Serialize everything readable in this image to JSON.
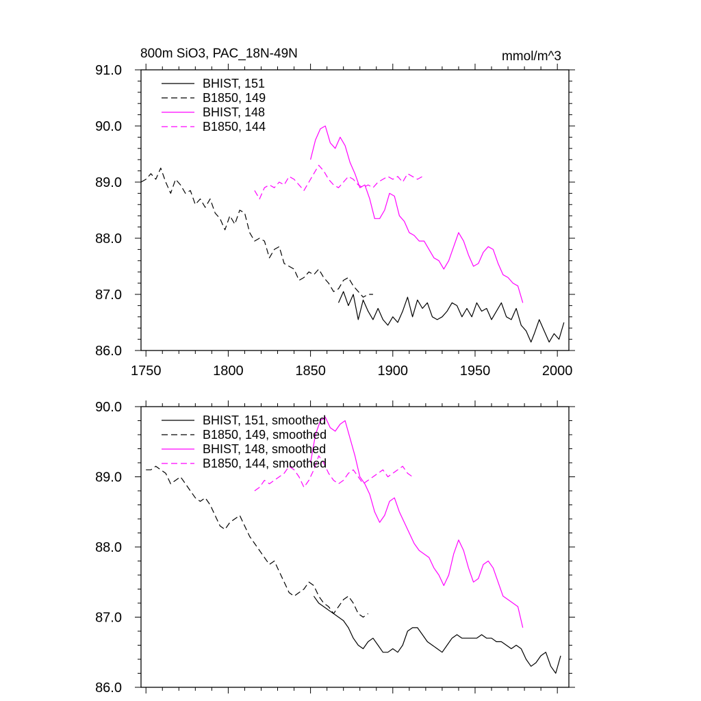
{
  "chart_data": [
    {
      "type": "line",
      "title": "800m SiO3, PAC_18N-49N",
      "units": "mmol/m^3",
      "xlim": [
        1747,
        2007
      ],
      "ylim": [
        86.0,
        91.0
      ],
      "xticks": [
        1750,
        1800,
        1850,
        1900,
        1950,
        2000
      ],
      "xtick_labels": [
        "1750",
        "1800",
        "1850",
        "1900",
        "1950",
        "2000"
      ],
      "yticks": [
        86.0,
        87.0,
        88.0,
        89.0,
        90.0,
        91.0
      ],
      "ytick_labels": [
        "86.0",
        "87.0",
        "88.0",
        "89.0",
        "90.0",
        "91.0"
      ],
      "legend_position": "top-left",
      "series": [
        {
          "name": "BHIST, 151",
          "color": "#000000",
          "dash": "solid",
          "x": [
            1867,
            1870,
            1873,
            1876,
            1879,
            1882,
            1885,
            1888,
            1891,
            1894,
            1897,
            1900,
            1903,
            1906,
            1909,
            1912,
            1915,
            1918,
            1921,
            1924,
            1927,
            1930,
            1933,
            1936,
            1939,
            1942,
            1945,
            1948,
            1951,
            1954,
            1957,
            1960,
            1963,
            1966,
            1969,
            1972,
            1975,
            1978,
            1981,
            1984,
            1986,
            1989,
            1992,
            1995,
            1998,
            2001,
            2004
          ],
          "y": [
            86.85,
            87.05,
            86.8,
            87.0,
            86.55,
            86.9,
            86.7,
            86.55,
            86.75,
            86.55,
            86.45,
            86.6,
            86.5,
            86.7,
            86.95,
            86.6,
            86.9,
            86.75,
            86.85,
            86.6,
            86.55,
            86.6,
            86.7,
            86.85,
            86.8,
            86.6,
            86.75,
            86.6,
            86.85,
            86.7,
            86.75,
            86.55,
            86.7,
            86.85,
            86.6,
            86.55,
            86.75,
            86.45,
            86.35,
            86.15,
            86.3,
            86.55,
            86.35,
            86.15,
            86.3,
            86.2,
            86.5
          ]
        },
        {
          "name": "B1850, 149",
          "color": "#000000",
          "dash": "dashed",
          "x": [
            1747,
            1750,
            1753,
            1756,
            1759,
            1762,
            1765,
            1768,
            1771,
            1774,
            1777,
            1780,
            1783,
            1786,
            1789,
            1792,
            1795,
            1798,
            1801,
            1804,
            1807,
            1810,
            1813,
            1816,
            1819,
            1822,
            1825,
            1828,
            1831,
            1834,
            1837,
            1840,
            1843,
            1846,
            1849,
            1852,
            1855,
            1858,
            1861,
            1864,
            1867,
            1870,
            1873,
            1876,
            1879,
            1882,
            1885,
            1888
          ],
          "y": [
            89.0,
            89.05,
            89.15,
            89.05,
            89.25,
            89.0,
            88.8,
            89.05,
            88.95,
            88.8,
            88.85,
            88.6,
            88.7,
            88.55,
            88.7,
            88.45,
            88.35,
            88.15,
            88.4,
            88.25,
            88.5,
            88.45,
            88.1,
            87.95,
            88.0,
            87.95,
            87.65,
            87.8,
            87.85,
            87.55,
            87.5,
            87.45,
            87.25,
            87.3,
            87.4,
            87.35,
            87.45,
            87.3,
            87.2,
            87.05,
            87.1,
            87.25,
            87.3,
            87.15,
            87.05,
            86.95,
            87.0,
            87.0
          ]
        },
        {
          "name": "BHIST, 148",
          "color": "#ff00ff",
          "dash": "solid",
          "x": [
            1850,
            1853,
            1856,
            1859,
            1862,
            1865,
            1868,
            1871,
            1874,
            1877,
            1880,
            1883,
            1886,
            1889,
            1892,
            1895,
            1898,
            1901,
            1904,
            1907,
            1910,
            1913,
            1916,
            1919,
            1922,
            1925,
            1928,
            1931,
            1934,
            1937,
            1940,
            1943,
            1946,
            1949,
            1952,
            1955,
            1958,
            1961,
            1964,
            1967,
            1970,
            1973,
            1976,
            1979
          ],
          "y": [
            89.4,
            89.75,
            89.95,
            90.0,
            89.7,
            89.6,
            89.8,
            89.65,
            89.35,
            89.15,
            88.9,
            88.95,
            88.7,
            88.35,
            88.35,
            88.5,
            88.8,
            88.75,
            88.4,
            88.3,
            88.1,
            88.05,
            87.95,
            87.95,
            87.8,
            87.65,
            87.6,
            87.45,
            87.6,
            87.85,
            88.1,
            87.95,
            87.7,
            87.5,
            87.55,
            87.75,
            87.85,
            87.8,
            87.55,
            87.35,
            87.3,
            87.2,
            87.15,
            86.85
          ]
        },
        {
          "name": "B1850, 144",
          "color": "#ff00ff",
          "dash": "dashed",
          "x": [
            1816,
            1819,
            1822,
            1825,
            1828,
            1831,
            1834,
            1837,
            1840,
            1843,
            1846,
            1849,
            1852,
            1855,
            1858,
            1861,
            1864,
            1867,
            1870,
            1873,
            1876,
            1879,
            1882,
            1885,
            1888,
            1891,
            1894,
            1897,
            1900,
            1903,
            1906,
            1909,
            1912,
            1915,
            1918
          ],
          "y": [
            88.85,
            88.7,
            88.9,
            88.95,
            88.9,
            89.0,
            88.95,
            89.1,
            89.05,
            88.95,
            88.85,
            89.0,
            89.15,
            89.3,
            89.2,
            89.05,
            88.95,
            88.9,
            89.0,
            89.1,
            89.05,
            88.95,
            88.9,
            88.95,
            88.9,
            89.0,
            89.05,
            89.1,
            89.05,
            89.1,
            89.0,
            89.15,
            89.1,
            89.05,
            89.1
          ]
        }
      ]
    },
    {
      "type": "line",
      "xlim": [
        1747,
        2007
      ],
      "ylim": [
        86.0,
        90.0
      ],
      "yticks": [
        86.0,
        87.0,
        88.0,
        89.0,
        90.0
      ],
      "ytick_labels": [
        "86.0",
        "87.0",
        "88.0",
        "89.0",
        "90.0"
      ],
      "xticks": [
        1750,
        1800,
        1850,
        1900,
        1950,
        2000
      ],
      "legend_position": "top-left",
      "series": [
        {
          "name": "BHIST, 151, smoothed",
          "color": "#000000",
          "dash": "solid",
          "x": [
            1852,
            1855,
            1858,
            1861,
            1864,
            1867,
            1870,
            1873,
            1876,
            1879,
            1882,
            1885,
            1888,
            1891,
            1894,
            1897,
            1900,
            1903,
            1906,
            1909,
            1912,
            1915,
            1918,
            1921,
            1924,
            1927,
            1930,
            1933,
            1936,
            1939,
            1942,
            1945,
            1948,
            1951,
            1954,
            1957,
            1960,
            1963,
            1966,
            1969,
            1972,
            1975,
            1978,
            1981,
            1984,
            1987,
            1990,
            1993,
            1996,
            1999,
            2002
          ],
          "y": [
            87.3,
            87.2,
            87.15,
            87.1,
            87.05,
            87.0,
            86.95,
            86.85,
            86.7,
            86.6,
            86.55,
            86.65,
            86.7,
            86.6,
            86.5,
            86.5,
            86.55,
            86.5,
            86.6,
            86.8,
            86.85,
            86.85,
            86.75,
            86.65,
            86.6,
            86.55,
            86.5,
            86.6,
            86.7,
            86.75,
            86.7,
            86.7,
            86.7,
            86.7,
            86.75,
            86.7,
            86.7,
            86.65,
            86.65,
            86.6,
            86.55,
            86.6,
            86.55,
            86.4,
            86.3,
            86.35,
            86.45,
            86.5,
            86.3,
            86.2,
            86.45
          ]
        },
        {
          "name": "B1850, 149, smoothed",
          "color": "#000000",
          "dash": "dashed",
          "x": [
            1750,
            1753,
            1756,
            1759,
            1762,
            1765,
            1768,
            1771,
            1774,
            1777,
            1780,
            1783,
            1786,
            1789,
            1792,
            1795,
            1798,
            1801,
            1804,
            1807,
            1810,
            1813,
            1816,
            1819,
            1822,
            1825,
            1828,
            1831,
            1834,
            1837,
            1840,
            1843,
            1846,
            1849,
            1852,
            1855,
            1858,
            1861,
            1864,
            1867,
            1870,
            1873,
            1876,
            1879,
            1882,
            1885
          ],
          "y": [
            89.1,
            89.1,
            89.15,
            89.1,
            89.05,
            88.9,
            88.95,
            89.0,
            88.9,
            88.8,
            88.7,
            88.65,
            88.7,
            88.6,
            88.45,
            88.3,
            88.25,
            88.35,
            88.4,
            88.45,
            88.3,
            88.15,
            88.05,
            87.95,
            87.85,
            87.75,
            87.8,
            87.65,
            87.5,
            87.35,
            87.3,
            87.35,
            87.4,
            87.5,
            87.45,
            87.3,
            87.2,
            87.15,
            87.05,
            87.15,
            87.25,
            87.3,
            87.2,
            87.05,
            87.0,
            87.05
          ]
        },
        {
          "name": "BHIST, 148, smoothed",
          "color": "#ff00ff",
          "dash": "solid",
          "x": [
            1850,
            1853,
            1856,
            1859,
            1862,
            1865,
            1868,
            1871,
            1874,
            1877,
            1880,
            1883,
            1886,
            1889,
            1892,
            1895,
            1898,
            1901,
            1904,
            1907,
            1910,
            1913,
            1916,
            1919,
            1922,
            1925,
            1928,
            1931,
            1934,
            1937,
            1940,
            1943,
            1946,
            1949,
            1952,
            1955,
            1958,
            1961,
            1964,
            1967,
            1970,
            1973,
            1976,
            1979
          ],
          "y": [
            89.2,
            89.6,
            89.8,
            89.85,
            89.7,
            89.65,
            89.75,
            89.8,
            89.55,
            89.3,
            89.0,
            88.9,
            88.75,
            88.5,
            88.35,
            88.45,
            88.65,
            88.7,
            88.5,
            88.35,
            88.2,
            88.05,
            87.95,
            87.9,
            87.85,
            87.7,
            87.6,
            87.45,
            87.6,
            87.9,
            88.1,
            87.95,
            87.7,
            87.5,
            87.55,
            87.75,
            87.8,
            87.7,
            87.5,
            87.3,
            87.25,
            87.2,
            87.15,
            86.85
          ]
        },
        {
          "name": "B1850, 144, smoothed",
          "color": "#ff00ff",
          "dash": "dashed",
          "x": [
            1816,
            1819,
            1822,
            1825,
            1828,
            1831,
            1834,
            1837,
            1840,
            1843,
            1846,
            1849,
            1852,
            1855,
            1858,
            1861,
            1864,
            1867,
            1870,
            1873,
            1876,
            1879,
            1882,
            1885,
            1888,
            1891,
            1894,
            1897,
            1900,
            1903,
            1906,
            1909,
            1912
          ],
          "y": [
            88.8,
            88.85,
            88.95,
            88.9,
            88.95,
            89.0,
            89.05,
            89.15,
            89.1,
            89.0,
            88.85,
            88.95,
            89.1,
            89.3,
            89.2,
            89.05,
            88.95,
            88.9,
            88.95,
            89.05,
            89.1,
            89.0,
            88.9,
            88.95,
            89.0,
            89.05,
            89.1,
            89.0,
            89.05,
            89.1,
            89.15,
            89.05,
            89.0
          ]
        }
      ]
    }
  ]
}
